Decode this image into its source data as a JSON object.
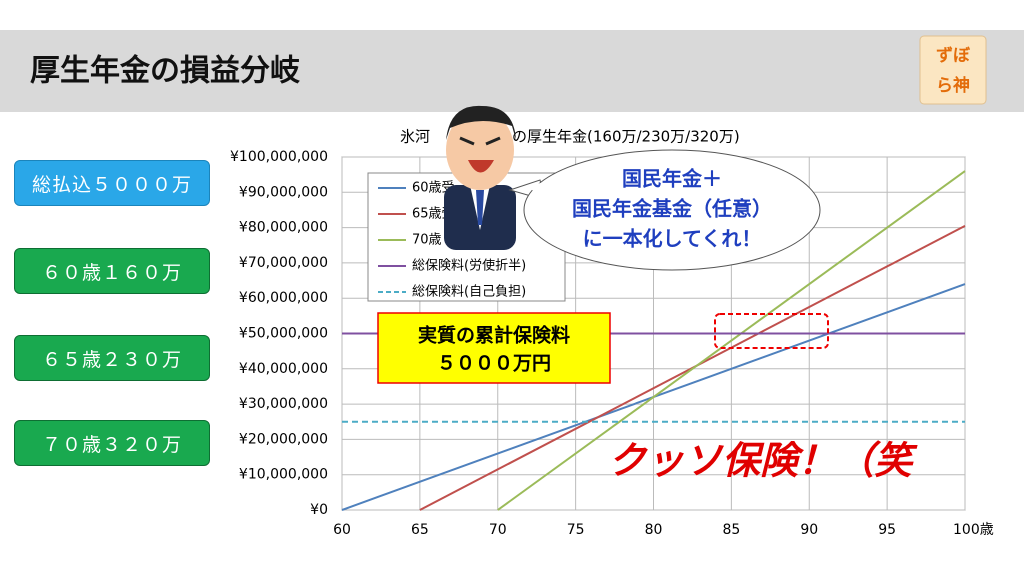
{
  "header": {
    "title": "厚生年金の損益分岐",
    "logo": [
      "ずぼ",
      "ら神"
    ]
  },
  "buttons": [
    "総払込５０００万",
    "６０歳１６０万",
    "６５歳２３０万",
    "７０歳３２０万"
  ],
  "callout": [
    "国民年金＋",
    "国民年金基金（任意）",
    "に一本化してくれ！"
  ],
  "note": [
    "実質の累計保険料",
    "５０００万円"
  ],
  "exclaim": "クッソ保険！（笑",
  "chart_data": {
    "type": "line",
    "title_parts": [
      "氷河",
      "の厚生年金(160万/230万/320万)"
    ],
    "series": [
      {
        "name": "60歳受",
        "color": "#4f81bd",
        "x": [
          60,
          100
        ],
        "values": [
          0,
          64000000
        ]
      },
      {
        "name": "65歳受",
        "color": "#c0504d",
        "x": [
          65,
          100
        ],
        "values": [
          0,
          80500000
        ]
      },
      {
        "name": "70歳",
        "color": "#9bbb59",
        "x": [
          70,
          100
        ],
        "values": [
          0,
          96000000
        ]
      },
      {
        "name": "総保険料(労使折半)",
        "color": "#7f50a0",
        "x": [
          60,
          100
        ],
        "values": [
          50000000,
          50000000
        ]
      },
      {
        "name": "総保険料(自己負担)",
        "color": "#4bacc6",
        "dash": true,
        "x": [
          60,
          100
        ],
        "values": [
          25000000,
          25000000
        ]
      }
    ],
    "xlim": [
      60,
      100
    ],
    "xticks": [
      60,
      65,
      70,
      75,
      80,
      85,
      90,
      95,
      {
        "value": 100,
        "label": "100歳"
      }
    ],
    "ylim": [
      0,
      100000000
    ],
    "yticks": [
      {
        "value": 0,
        "label": "¥0"
      },
      {
        "value": 10000000,
        "label": "¥10,000,000"
      },
      {
        "value": 20000000,
        "label": "¥20,000,000"
      },
      {
        "value": 30000000,
        "label": "¥30,000,000"
      },
      {
        "value": 40000000,
        "label": "¥40,000,000"
      },
      {
        "value": 50000000,
        "label": "¥50,000,000"
      },
      {
        "value": 60000000,
        "label": "¥60,000,000"
      },
      {
        "value": 70000000,
        "label": "¥70,000,000"
      },
      {
        "value": 80000000,
        "label": "¥80,000,000"
      },
      {
        "value": 90000000,
        "label": "¥90,000,000"
      },
      {
        "value": 100000000,
        "label": "¥100,000,000"
      }
    ],
    "grid": true
  }
}
